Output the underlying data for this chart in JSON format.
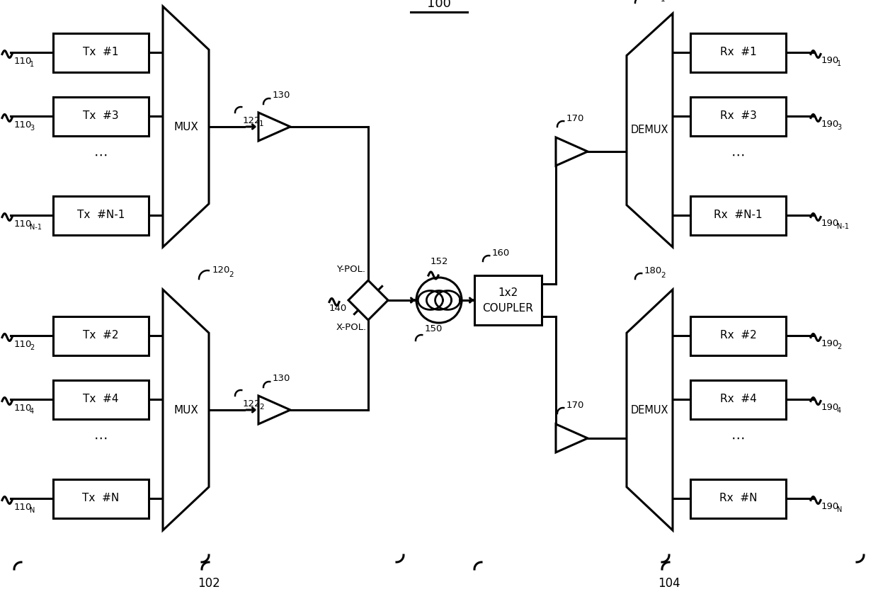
{
  "bg_color": "#ffffff",
  "title": "100",
  "label_102": "102",
  "label_104": "104",
  "tx_top_labels": [
    "Tx  #1",
    "Tx  #3",
    "Tx  #N-1"
  ],
  "tx_bot_labels": [
    "Tx  #2",
    "Tx  #4",
    "Tx  #N"
  ],
  "rx_top_labels": [
    "Rx  #1",
    "Rx  #3",
    "Rx  #N-1"
  ],
  "rx_bot_labels": [
    "Rx  #2",
    "Rx  #4",
    "Rx  #N"
  ],
  "in_top": [
    "110",
    "110",
    "110"
  ],
  "in_top_sub": [
    "1",
    "3",
    "N-1"
  ],
  "in_bot": [
    "110",
    "110",
    "110"
  ],
  "in_bot_sub": [
    "2",
    "4",
    "N"
  ],
  "out_top": [
    "190",
    "190",
    "190"
  ],
  "out_top_sub": [
    "1",
    "3",
    "N-1"
  ],
  "out_bot": [
    "190",
    "190",
    "190"
  ],
  "out_bot_sub": [
    "2",
    "4",
    "N"
  ],
  "lw": 2.2,
  "fs_main": 11,
  "fs_label": 9.5
}
